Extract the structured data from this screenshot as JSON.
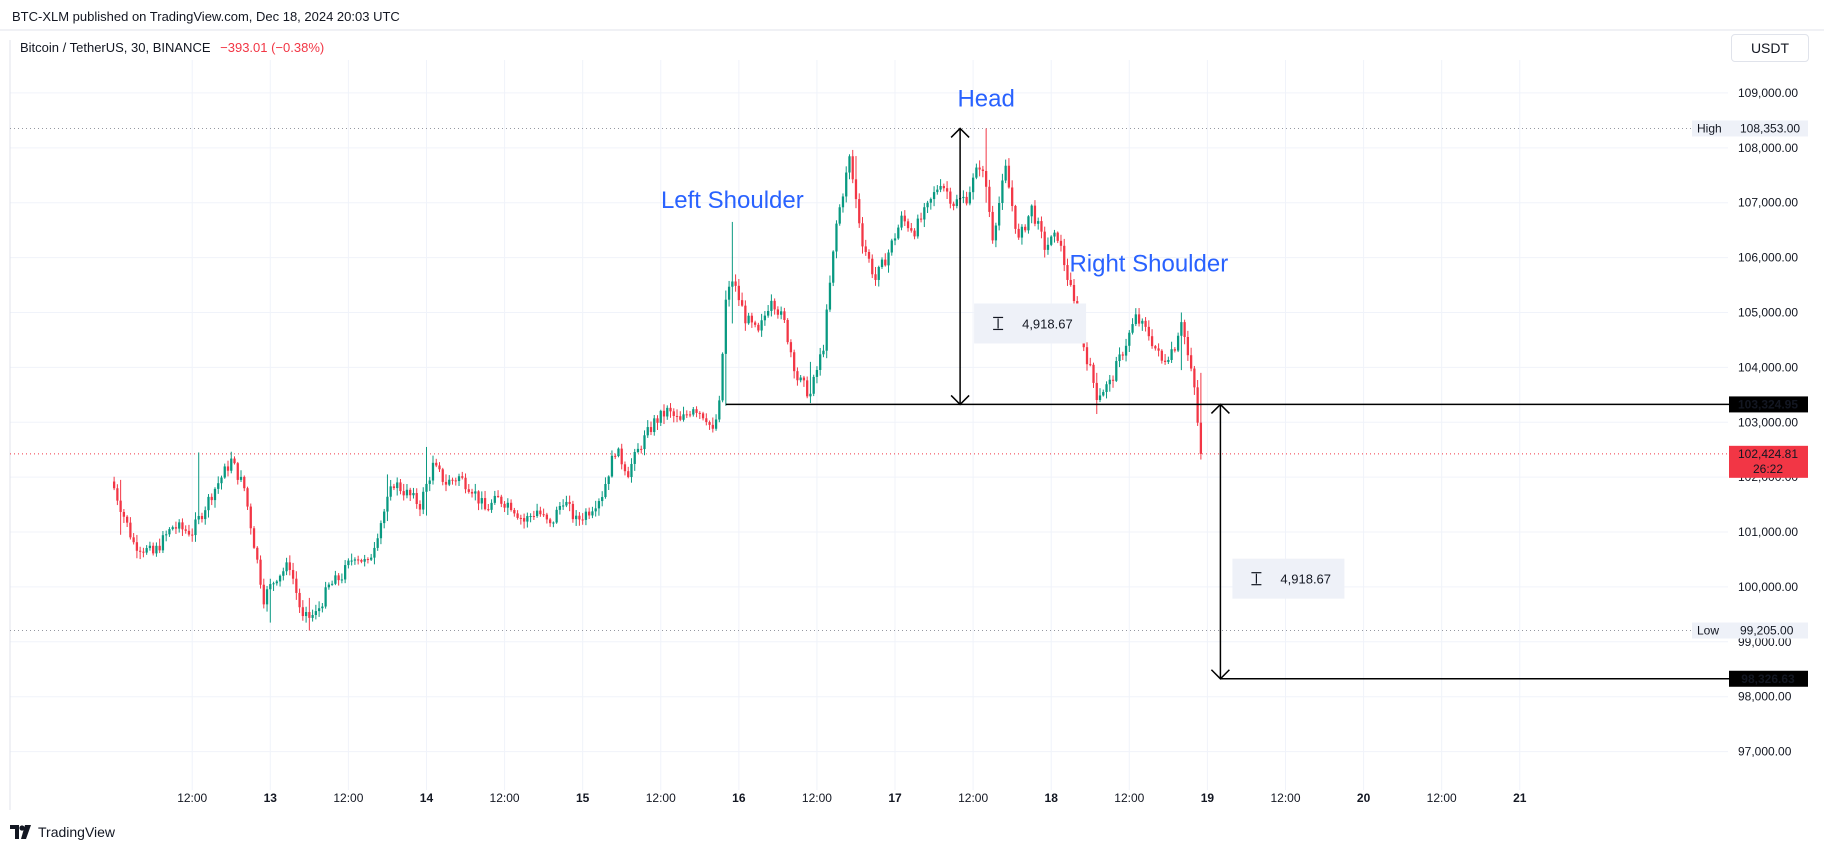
{
  "header": {
    "published": "BTC-XLM published on TradingView.com, Dec 18, 2024 20:03 UTC",
    "symbol": "Bitcoin / TetherUS, 30, BINANCE",
    "change": "−393.01 (−0.38%)"
  },
  "currency_button": "USDT",
  "brand": "TradingView",
  "colors": {
    "up": "#089981",
    "down": "#f23645",
    "label": "#2962ff",
    "price_tag": "#000000",
    "current_tag": "#f23645"
  },
  "chart_data": {
    "type": "candlestick",
    "pattern_labels": [
      "Left Shoulder",
      "Head",
      "Right Shoulder"
    ],
    "ylim": [
      96300,
      109600
    ],
    "y_ticks": [
      97000,
      98000,
      99000,
      100000,
      101000,
      102000,
      103000,
      104000,
      105000,
      106000,
      107000,
      108000,
      109000
    ],
    "y_tick_labels": [
      "97,000.00",
      "98,000.00",
      "99,000.00",
      "100,000.00",
      "101,000.00",
      "102,000.00",
      "103,000.00",
      "104,000.00",
      "105,000.00",
      "106,000.00",
      "107,000.00",
      "108,000.00",
      "109,000.00"
    ],
    "x_range_hours": [
      -16,
      248
    ],
    "x_ticks": [
      {
        "h": 12,
        "label": "12:00",
        "bold": false
      },
      {
        "h": 24,
        "label": "13",
        "bold": true
      },
      {
        "h": 36,
        "label": "12:00",
        "bold": false
      },
      {
        "h": 48,
        "label": "14",
        "bold": true
      },
      {
        "h": 60,
        "label": "12:00",
        "bold": false
      },
      {
        "h": 72,
        "label": "15",
        "bold": true
      },
      {
        "h": 84,
        "label": "12:00",
        "bold": false
      },
      {
        "h": 96,
        "label": "16",
        "bold": true
      },
      {
        "h": 108,
        "label": "12:00",
        "bold": false
      },
      {
        "h": 120,
        "label": "17",
        "bold": true
      },
      {
        "h": 132,
        "label": "12:00",
        "bold": false
      },
      {
        "h": 144,
        "label": "18",
        "bold": true
      },
      {
        "h": 156,
        "label": "12:00",
        "bold": false
      },
      {
        "h": 168,
        "label": "19",
        "bold": true
      },
      {
        "h": 180,
        "label": "12:00",
        "bold": false
      },
      {
        "h": 192,
        "label": "20",
        "bold": true
      },
      {
        "h": 204,
        "label": "12:00",
        "bold": false
      },
      {
        "h": 216,
        "label": "21",
        "bold": true
      }
    ],
    "close_path": [
      [
        0,
        101800
      ],
      [
        3,
        100800
      ],
      [
        6,
        100600
      ],
      [
        9,
        101100
      ],
      [
        12,
        101000
      ],
      [
        15,
        101700
      ],
      [
        18,
        102300
      ],
      [
        20,
        101800
      ],
      [
        23,
        99800
      ],
      [
        25,
        100200
      ],
      [
        27,
        100400
      ],
      [
        29,
        99400
      ],
      [
        31,
        99500
      ],
      [
        33,
        100000
      ],
      [
        35,
        100200
      ],
      [
        37,
        100600
      ],
      [
        39,
        100400
      ],
      [
        41,
        101200
      ],
      [
        43,
        101900
      ],
      [
        45,
        101700
      ],
      [
        47,
        101500
      ],
      [
        49,
        102200
      ],
      [
        51,
        101900
      ],
      [
        53,
        102000
      ],
      [
        55,
        101800
      ],
      [
        57,
        101400
      ],
      [
        59,
        101600
      ],
      [
        61,
        101500
      ],
      [
        63,
        101200
      ],
      [
        65,
        101400
      ],
      [
        67,
        101100
      ],
      [
        69,
        101600
      ],
      [
        71,
        101200
      ],
      [
        73,
        101400
      ],
      [
        75,
        101700
      ],
      [
        77,
        102500
      ],
      [
        79,
        102100
      ],
      [
        81,
        102600
      ],
      [
        83,
        103000
      ],
      [
        85,
        103200
      ],
      [
        87,
        103000
      ],
      [
        89,
        103300
      ],
      [
        91,
        103100
      ],
      [
        92,
        102800
      ],
      [
        93,
        103300
      ],
      [
        94,
        105200
      ],
      [
        95,
        105600
      ],
      [
        97,
        104900
      ],
      [
        99,
        104600
      ],
      [
        101,
        105300
      ],
      [
        103,
        104800
      ],
      [
        105,
        103800
      ],
      [
        107,
        103500
      ],
      [
        109,
        104400
      ],
      [
        111,
        106600
      ],
      [
        113,
        107800
      ],
      [
        115,
        106300
      ],
      [
        117,
        105600
      ],
      [
        119,
        106100
      ],
      [
        121,
        106700
      ],
      [
        123,
        106500
      ],
      [
        125,
        106900
      ],
      [
        127,
        107400
      ],
      [
        129,
        107000
      ],
      [
        131,
        107100
      ],
      [
        133,
        107700
      ],
      [
        134,
        107300
      ],
      [
        135,
        106400
      ],
      [
        137,
        107600
      ],
      [
        139,
        106300
      ],
      [
        141,
        106900
      ],
      [
        143,
        106200
      ],
      [
        145,
        106400
      ],
      [
        147,
        105400
      ],
      [
        149,
        104400
      ],
      [
        151,
        103500
      ],
      [
        153,
        103700
      ],
      [
        155,
        104300
      ],
      [
        157,
        104900
      ],
      [
        159,
        104600
      ],
      [
        161,
        104100
      ],
      [
        163,
        104400
      ],
      [
        164,
        104900
      ],
      [
        165,
        104200
      ],
      [
        166,
        103600
      ],
      [
        167,
        102400
      ]
    ],
    "extremes": [
      {
        "h": 1,
        "high": 101950,
        "low": 100950
      },
      {
        "h": 13,
        "high": 102450,
        "low": 101200
      },
      {
        "h": 24,
        "high": 100000,
        "low": 99350
      },
      {
        "h": 30,
        "high": 99800,
        "low": 99205
      },
      {
        "h": 42,
        "high": 102050,
        "low": 101200
      },
      {
        "h": 48,
        "high": 102550,
        "low": 101300
      },
      {
        "h": 94,
        "high": 105400,
        "low": 103300
      },
      {
        "h": 95,
        "high": 106650,
        "low": 104800
      },
      {
        "h": 107,
        "high": 104100,
        "low": 103350
      },
      {
        "h": 114,
        "high": 107850,
        "low": 106900
      },
      {
        "h": 134,
        "high": 108353,
        "low": 107000
      },
      {
        "h": 151,
        "high": 103900,
        "low": 103150
      },
      {
        "h": 164,
        "high": 105000,
        "low": 103950
      },
      {
        "h": 167,
        "high": 103900,
        "low": 102350
      }
    ],
    "high": {
      "label": "High",
      "value": "108,353.00",
      "price": 108353
    },
    "low": {
      "label": "Low",
      "value": "99,205.00",
      "price": 99205
    },
    "neckline": {
      "value": "103,324.95",
      "price": 103324.95,
      "from_h": 94
    },
    "current": {
      "value": "102,424.81",
      "countdown": "26:22",
      "price": 102424.81
    },
    "target": {
      "value": "98,326.63",
      "price": 98326.63
    },
    "measure": {
      "value": "4,918.67",
      "head_h": 130,
      "target_h": 170
    }
  }
}
